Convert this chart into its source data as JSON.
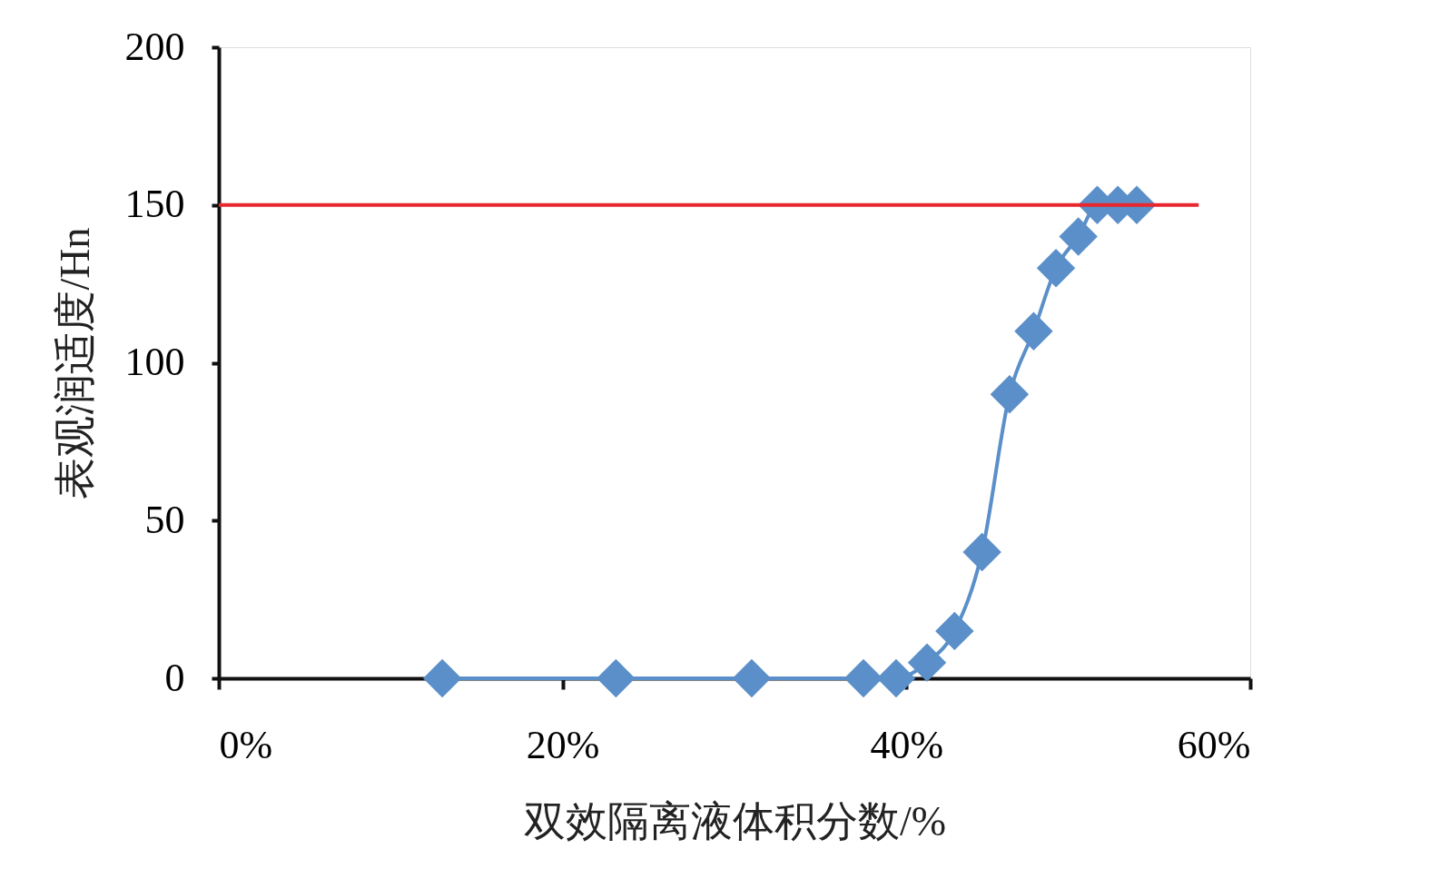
{
  "chart_data": {
    "type": "line",
    "xlabel": "双效隔离液体积分数/%",
    "ylabel": "表观润适度/Hn",
    "xlim": [
      0,
      60
    ],
    "ylim": [
      0,
      200
    ],
    "xticks": [
      {
        "value": 0,
        "label": "0%"
      },
      {
        "value": 20,
        "label": "20%"
      },
      {
        "value": 40,
        "label": "40%"
      },
      {
        "value": 60,
        "label": "60%"
      }
    ],
    "yticks": [
      0,
      50,
      100,
      150,
      200
    ],
    "grid": false,
    "series": [
      {
        "color": "#5b8fc9",
        "marker": "diamond",
        "line_style": "solid",
        "x": [
          13.0,
          23.1,
          31.0,
          37.5,
          39.4,
          41.2,
          42.8,
          44.4,
          46.0,
          47.4,
          48.7,
          50.0,
          51.1,
          52.3,
          53.4
        ],
        "values": [
          0,
          0,
          0,
          0,
          0,
          5,
          15,
          40,
          90,
          110,
          130,
          140,
          150,
          150,
          150
        ]
      },
      {
        "type": "line",
        "color": "#e8262d",
        "marker": "none",
        "line_style": "solid",
        "x": [
          0,
          57
        ],
        "values": [
          150,
          150
        ]
      }
    ]
  }
}
